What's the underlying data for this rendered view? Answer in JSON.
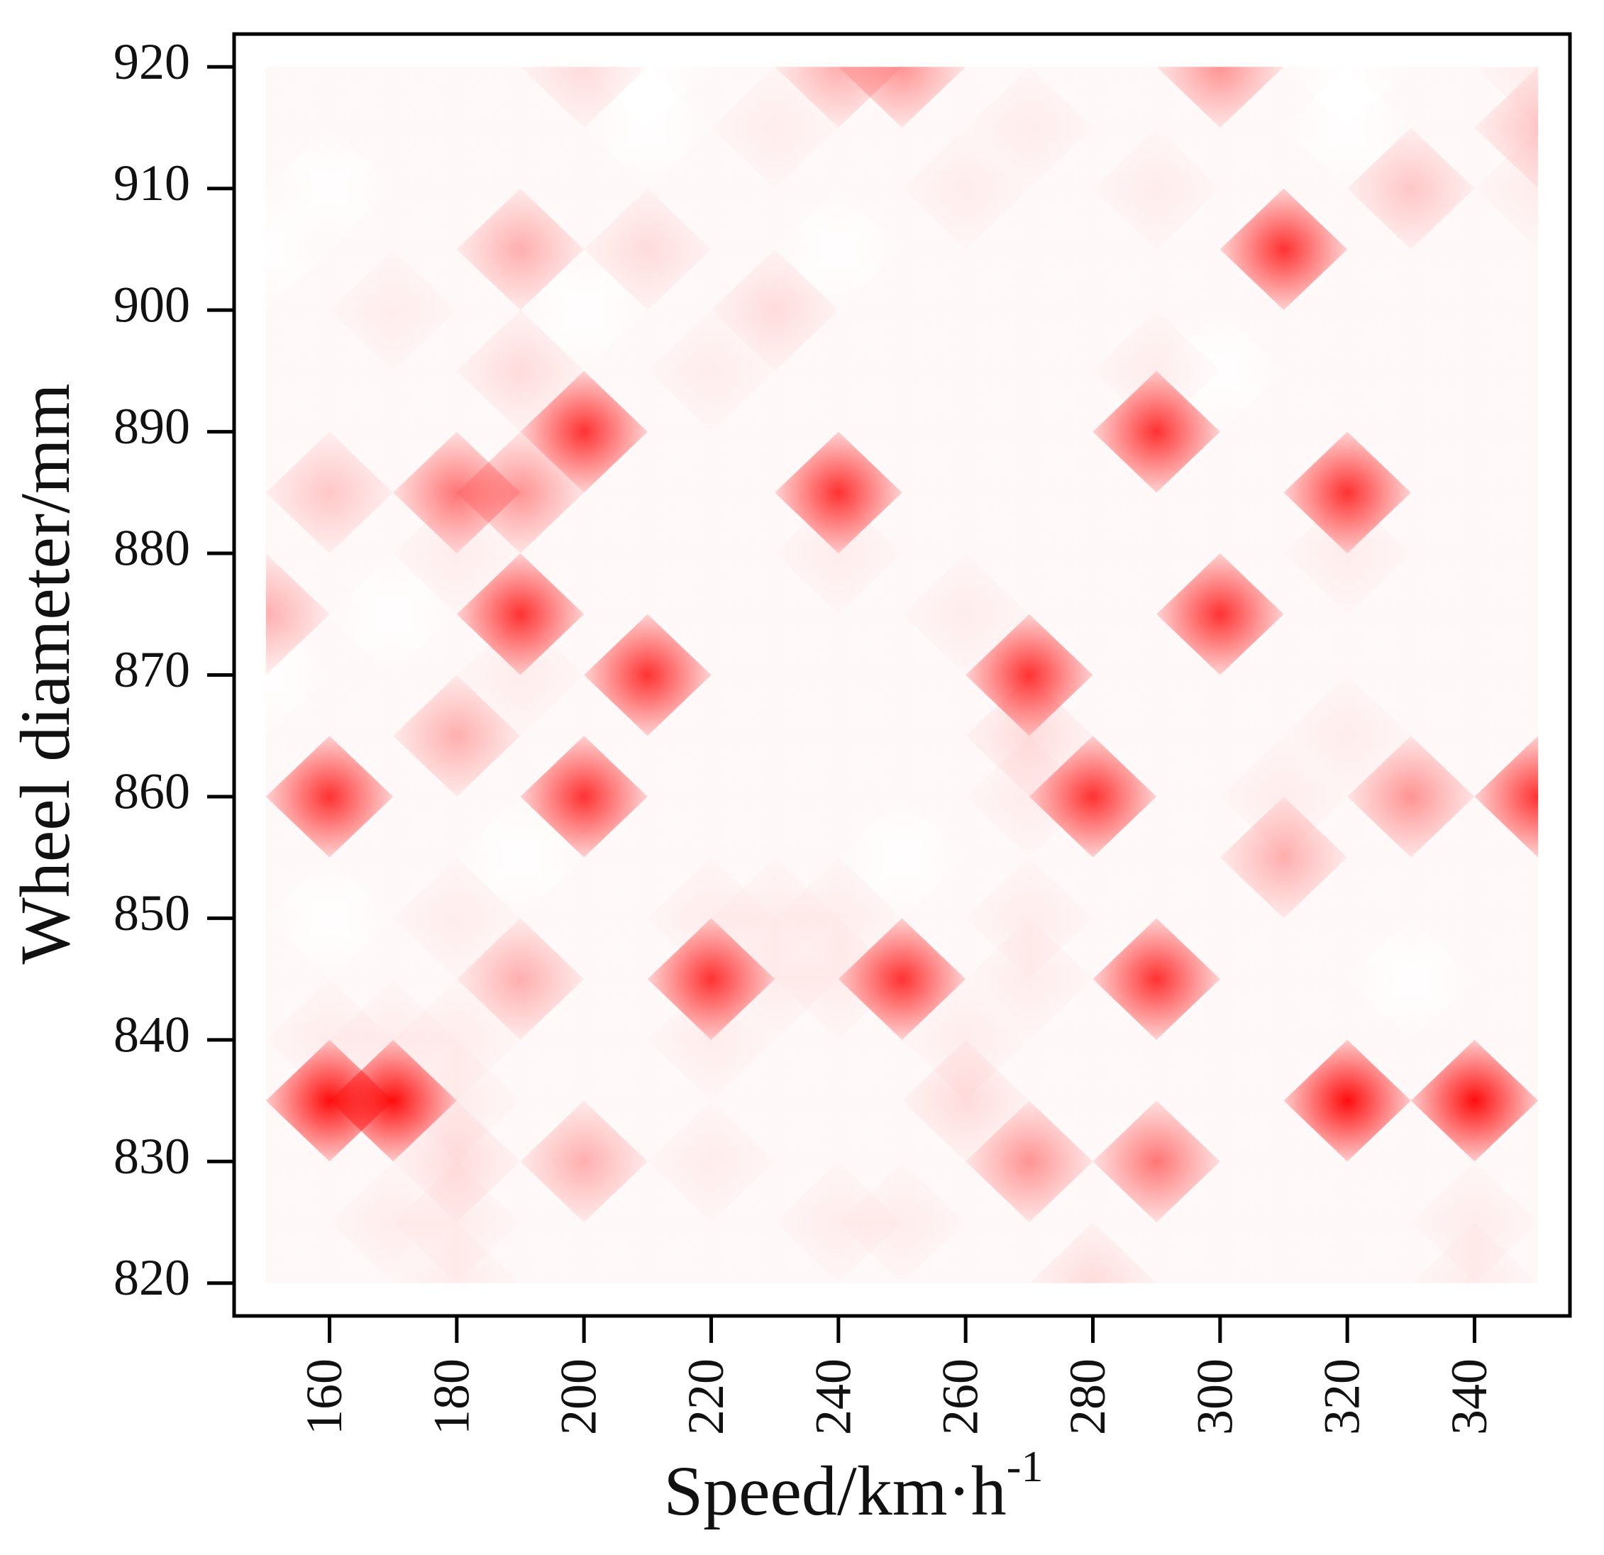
{
  "chart_data": {
    "type": "heatmap",
    "x_label": "Speed/km·h",
    "x_label_sup": "-1",
    "y_label": "Wheel diameter/mm",
    "color": "#ff0000",
    "x": [
      150,
      160,
      170,
      180,
      190,
      200,
      210,
      220,
      230,
      240,
      250,
      260,
      270,
      280,
      290,
      300,
      310,
      320,
      330,
      340,
      350
    ],
    "y": [
      820,
      825,
      830,
      835,
      840,
      845,
      850,
      855,
      860,
      865,
      870,
      875,
      880,
      885,
      890,
      895,
      900,
      905,
      910,
      915,
      920
    ],
    "z": [
      [
        1,
        1,
        1,
        2,
        1,
        1,
        1,
        1,
        1,
        1,
        1,
        1,
        1,
        3,
        1,
        1,
        1,
        1,
        1,
        2,
        1
      ],
      [
        1,
        1,
        2,
        2,
        1,
        1,
        1,
        1,
        1,
        2,
        2,
        1,
        1,
        1,
        1,
        1,
        1,
        1,
        1,
        2,
        1
      ],
      [
        1,
        1,
        1,
        3,
        1,
        5,
        1,
        2,
        1,
        1,
        1,
        1,
        6,
        1,
        7,
        1,
        1,
        1,
        1,
        1,
        1
      ],
      [
        1,
        10,
        10,
        2,
        1,
        1,
        1,
        1,
        1,
        1,
        1,
        3,
        1,
        1,
        1,
        1,
        1,
        10,
        1,
        10,
        1
      ],
      [
        1,
        2,
        2,
        2,
        1,
        1,
        1,
        2,
        1,
        1,
        1,
        2,
        1,
        1,
        1,
        1,
        1,
        1,
        1,
        1,
        1
      ],
      [
        1,
        1,
        1,
        1,
        5,
        1,
        1,
        9,
        2,
        2,
        9,
        1,
        2,
        1,
        9,
        1,
        1,
        1,
        0,
        1,
        1
      ],
      [
        1,
        0,
        1,
        2,
        1,
        1,
        1,
        2,
        2,
        2,
        1,
        1,
        2,
        1,
        1,
        1,
        1,
        1,
        1,
        1,
        1
      ],
      [
        1,
        1,
        1,
        1,
        0,
        1,
        1,
        1,
        1,
        1,
        0,
        1,
        1,
        1,
        1,
        1,
        5,
        1,
        1,
        1,
        1
      ],
      [
        1,
        9,
        1,
        1,
        1,
        9,
        1,
        1,
        1,
        1,
        1,
        1,
        2,
        9,
        1,
        1,
        2,
        1,
        6,
        1,
        9
      ],
      [
        1,
        1,
        1,
        5,
        1,
        1,
        1,
        1,
        1,
        1,
        1,
        1,
        3,
        1,
        1,
        1,
        1,
        2,
        1,
        1,
        1
      ],
      [
        0,
        1,
        1,
        1,
        2,
        1,
        9,
        1,
        1,
        1,
        1,
        1,
        9,
        1,
        1,
        1,
        1,
        1,
        1,
        1,
        1
      ],
      [
        5,
        1,
        0,
        1,
        9,
        1,
        1,
        1,
        1,
        1,
        1,
        2,
        1,
        1,
        1,
        9,
        1,
        1,
        1,
        1,
        1
      ],
      [
        1,
        1,
        1,
        2,
        1,
        1,
        1,
        1,
        1,
        2,
        1,
        1,
        1,
        1,
        1,
        1,
        1,
        2,
        1,
        1,
        1
      ],
      [
        1,
        4,
        1,
        7,
        6,
        1,
        1,
        1,
        1,
        9,
        1,
        1,
        1,
        1,
        1,
        1,
        1,
        9,
        1,
        1,
        1
      ],
      [
        1,
        1,
        1,
        1,
        1,
        9,
        1,
        1,
        1,
        1,
        1,
        1,
        1,
        1,
        9,
        1,
        1,
        1,
        1,
        1,
        1
      ],
      [
        1,
        1,
        1,
        1,
        3,
        1,
        1,
        2,
        1,
        1,
        1,
        1,
        1,
        1,
        2,
        0,
        1,
        1,
        1,
        1,
        1
      ],
      [
        1,
        1,
        2,
        1,
        1,
        0,
        1,
        1,
        3,
        1,
        1,
        1,
        1,
        1,
        1,
        1,
        1,
        1,
        1,
        1,
        1
      ],
      [
        0,
        1,
        1,
        1,
        5,
        1,
        3,
        1,
        1,
        0,
        1,
        1,
        1,
        1,
        1,
        1,
        9,
        1,
        1,
        1,
        1
      ],
      [
        1,
        0,
        1,
        1,
        1,
        1,
        1,
        1,
        1,
        1,
        1,
        2,
        1,
        1,
        2,
        1,
        1,
        1,
        4,
        1,
        2
      ],
      [
        1,
        1,
        1,
        1,
        1,
        1,
        0,
        1,
        2,
        1,
        1,
        1,
        2,
        1,
        1,
        1,
        1,
        0,
        1,
        1,
        4
      ],
      [
        1,
        1,
        1,
        1,
        1,
        3,
        0,
        1,
        1,
        5,
        6,
        1,
        1,
        1,
        1,
        6,
        1,
        0,
        1,
        1,
        2
      ]
    ],
    "zlim": [
      0,
      10
    ],
    "xlim": [
      145,
      355
    ],
    "xticks": [
      160,
      180,
      200,
      220,
      240,
      260,
      280,
      300,
      320,
      340
    ],
    "ylim": [
      817.3,
      922.7
    ],
    "yticks": [
      820,
      830,
      840,
      850,
      860,
      870,
      880,
      890,
      900,
      910,
      920
    ]
  }
}
